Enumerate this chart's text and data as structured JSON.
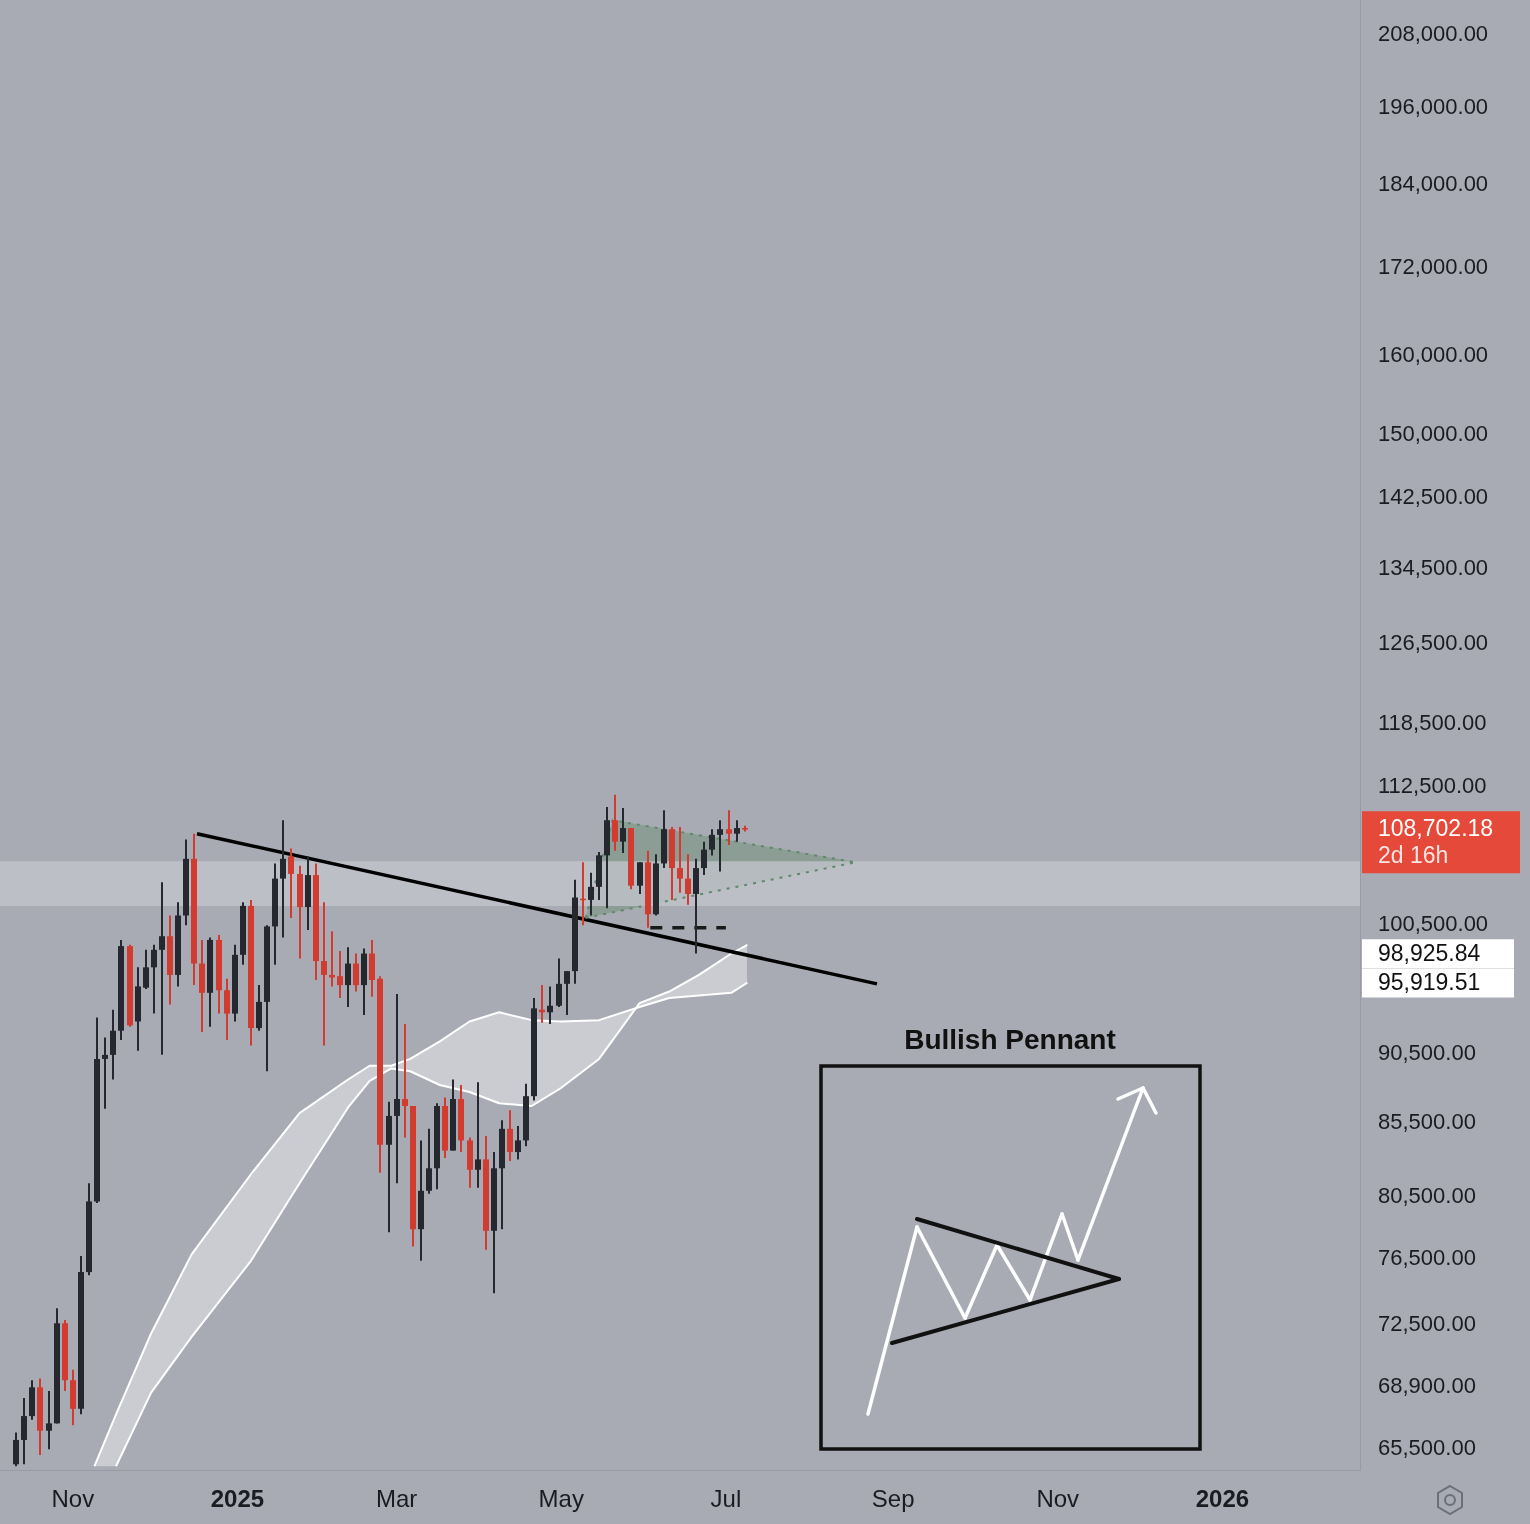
{
  "chart_data": {
    "type": "candlestick",
    "x": [
      "2024-10-11",
      "2024-10-14",
      "2024-10-17",
      "2024-10-20",
      "2024-10-23",
      "2024-10-26",
      "2024-10-29",
      "2024-11-01",
      "2024-11-04",
      "2024-11-07",
      "2024-11-10",
      "2024-11-13",
      "2024-11-16",
      "2024-11-19",
      "2024-11-22",
      "2024-11-25",
      "2024-11-28",
      "2024-12-01",
      "2024-12-04",
      "2024-12-07",
      "2024-12-10",
      "2024-12-13",
      "2024-12-16",
      "2024-12-19",
      "2024-12-22",
      "2024-12-25",
      "2024-12-28",
      "2024-12-31",
      "2025-01-03",
      "2025-01-06",
      "2025-01-09",
      "2025-01-12",
      "2025-01-15",
      "2025-01-18",
      "2025-01-21",
      "2025-01-24",
      "2025-01-27",
      "2025-01-30",
      "2025-02-02",
      "2025-02-05",
      "2025-02-08",
      "2025-02-11",
      "2025-02-14",
      "2025-02-17",
      "2025-02-20",
      "2025-02-23",
      "2025-02-26",
      "2025-03-01",
      "2025-03-04",
      "2025-03-07",
      "2025-03-10",
      "2025-03-13",
      "2025-03-16",
      "2025-03-19",
      "2025-03-22",
      "2025-03-25",
      "2025-03-28",
      "2025-03-31",
      "2025-04-03",
      "2025-04-06",
      "2025-04-09",
      "2025-04-12",
      "2025-04-15",
      "2025-04-18",
      "2025-04-21",
      "2025-04-24",
      "2025-04-27",
      "2025-04-30",
      "2025-05-03",
      "2025-05-06",
      "2025-05-09",
      "2025-05-12",
      "2025-05-15",
      "2025-05-18",
      "2025-05-21",
      "2025-05-24",
      "2025-05-27",
      "2025-05-30",
      "2025-06-02",
      "2025-06-05",
      "2025-06-08",
      "2025-06-11",
      "2025-06-14",
      "2025-06-17",
      "2025-06-20",
      "2025-06-23",
      "2025-06-26",
      "2025-06-29",
      "2025-07-02",
      "2025-07-05",
      "2025-07-08"
    ],
    "ohlc": [
      [
        64700,
        66400,
        64600,
        66000
      ],
      [
        66000,
        68300,
        64700,
        67300
      ],
      [
        67300,
        69300,
        67100,
        68900
      ],
      [
        68900,
        69400,
        65200,
        66500
      ],
      [
        66500,
        68700,
        65500,
        66900
      ],
      [
        66900,
        73500,
        66900,
        72600
      ],
      [
        72600,
        72800,
        68700,
        69300
      ],
      [
        69300,
        69900,
        66800,
        67700
      ],
      [
        67700,
        76700,
        67400,
        75700
      ],
      [
        75700,
        81400,
        75500,
        80200
      ],
      [
        80200,
        93200,
        80100,
        90100
      ],
      [
        90100,
        91700,
        86500,
        90400
      ],
      [
        90400,
        93800,
        88600,
        92200
      ],
      [
        92200,
        99300,
        91500,
        98800
      ],
      [
        98800,
        98900,
        92500,
        92600
      ],
      [
        92900,
        97100,
        90700,
        95600
      ],
      [
        95500,
        98500,
        95400,
        97100
      ],
      [
        97100,
        98900,
        93500,
        98500
      ],
      [
        98500,
        104100,
        90400,
        99600
      ],
      [
        99600,
        101300,
        94200,
        96500
      ],
      [
        96500,
        102400,
        95600,
        101300
      ],
      [
        101300,
        107800,
        100500,
        106100
      ],
      [
        106100,
        108300,
        95700,
        97400
      ],
      [
        97400,
        99300,
        92100,
        95100
      ],
      [
        95100,
        99500,
        92500,
        99300
      ],
      [
        99300,
        99700,
        93500,
        95300
      ],
      [
        95300,
        96200,
        91500,
        93500
      ],
      [
        93500,
        98900,
        92900,
        98100
      ],
      [
        98100,
        102400,
        97300,
        102100
      ],
      [
        102100,
        102600,
        91100,
        92400
      ],
      [
        92400,
        95700,
        92200,
        94400
      ],
      [
        94400,
        100500,
        89200,
        100400
      ],
      [
        100400,
        105700,
        97300,
        104400
      ],
      [
        104400,
        109500,
        99500,
        106100
      ],
      [
        106300,
        107000,
        101100,
        104800
      ],
      [
        104800,
        105500,
        97800,
        102000
      ],
      [
        102000,
        106300,
        100100,
        104700
      ],
      [
        104700,
        105700,
        96100,
        97600
      ],
      [
        97600,
        102400,
        91100,
        96500
      ],
      [
        96500,
        100000,
        95600,
        96300
      ],
      [
        96400,
        98400,
        94700,
        95700
      ],
      [
        95700,
        98700,
        94000,
        97400
      ],
      [
        97400,
        98200,
        95200,
        95700
      ],
      [
        95700,
        98600,
        93400,
        98200
      ],
      [
        98200,
        99300,
        94800,
        96100
      ],
      [
        96200,
        96400,
        82100,
        84000
      ],
      [
        84000,
        87000,
        78200,
        86000
      ],
      [
        86000,
        95000,
        81400,
        87200
      ],
      [
        87200,
        92700,
        84500,
        86700
      ],
      [
        86700,
        86700,
        77300,
        78400
      ],
      [
        78400,
        84300,
        76400,
        80900
      ],
      [
        80900,
        85100,
        80700,
        82400
      ],
      [
        82400,
        86900,
        81000,
        86700
      ],
      [
        86700,
        87300,
        83100,
        83600
      ],
      [
        83600,
        88600,
        83600,
        87200
      ],
      [
        87200,
        88200,
        83500,
        84300
      ],
      [
        84300,
        84500,
        81100,
        82300
      ],
      [
        82300,
        88400,
        81100,
        83000
      ],
      [
        83000,
        84600,
        77100,
        78300
      ],
      [
        78300,
        83500,
        74400,
        82400
      ],
      [
        82400,
        85700,
        78400,
        85100
      ],
      [
        85100,
        86400,
        82900,
        83500
      ],
      [
        83500,
        85300,
        83000,
        84300
      ],
      [
        84300,
        88300,
        83900,
        87400
      ],
      [
        87400,
        94700,
        87100,
        93900
      ],
      [
        93800,
        95700,
        92800,
        93600
      ],
      [
        93600,
        95600,
        92700,
        94100
      ],
      [
        94100,
        97800,
        94000,
        95800
      ],
      [
        95800,
        96800,
        93400,
        96800
      ],
      [
        96800,
        104300,
        95800,
        102800
      ],
      [
        102700,
        105800,
        100500,
        102600
      ],
      [
        102600,
        104900,
        101300,
        103700
      ],
      [
        103700,
        106700,
        102600,
        106400
      ],
      [
        106400,
        110700,
        101900,
        109500
      ],
      [
        109500,
        111800,
        106800,
        107600
      ],
      [
        107600,
        110600,
        106600,
        108800
      ],
      [
        108800,
        108800,
        103500,
        103800
      ],
      [
        103800,
        105800,
        103100,
        105800
      ],
      [
        105800,
        106800,
        100300,
        101400
      ],
      [
        101400,
        106500,
        101300,
        105700
      ],
      [
        105700,
        110400,
        105300,
        108700
      ],
      [
        108700,
        108900,
        102600,
        105300
      ],
      [
        105300,
        108900,
        103200,
        104400
      ],
      [
        104400,
        106500,
        102200,
        103100
      ],
      [
        103100,
        106100,
        98200,
        105300
      ],
      [
        105300,
        107600,
        104700,
        106900
      ],
      [
        106900,
        108700,
        106400,
        108200
      ],
      [
        108200,
        109500,
        105000,
        108700
      ],
      [
        108700,
        110400,
        107300,
        108300
      ],
      [
        108300,
        109500,
        107600,
        108800
      ],
      [
        108800,
        109000,
        108500,
        108700
      ]
    ],
    "colors": [
      "#262830",
      "#262830",
      "#262830",
      "#d23b2f",
      "#262830",
      "#262830",
      "#d23b2f",
      "#d23b2f",
      "#262830",
      "#262830",
      "#262830",
      "#262830",
      "#262830",
      "#262830",
      "#d23b2f",
      "#262830",
      "#262830",
      "#262830",
      "#262830",
      "#d23b2f",
      "#262830",
      "#262830",
      "#d23b2f",
      "#d23b2f",
      "#262830",
      "#d23b2f",
      "#d23b2f",
      "#262830",
      "#262830",
      "#d23b2f",
      "#262830",
      "#262830",
      "#262830",
      "#262830",
      "#d23b2f",
      "#d23b2f",
      "#262830",
      "#d23b2f",
      "#d23b2f",
      "#d23b2f",
      "#d23b2f",
      "#262830",
      "#d23b2f",
      "#262830",
      "#d23b2f",
      "#d23b2f",
      "#262830",
      "#262830",
      "#d23b2f",
      "#d23b2f",
      "#262830",
      "#262830",
      "#262830",
      "#d23b2f",
      "#262830",
      "#d23b2f",
      "#d23b2f",
      "#262830",
      "#d23b2f",
      "#262830",
      "#262830",
      "#d23b2f",
      "#262830",
      "#262830",
      "#262830",
      "#d23b2f",
      "#262830",
      "#262830",
      "#262830",
      "#262830",
      "#d23b2f",
      "#262830",
      "#262830",
      "#262830",
      "#d23b2f",
      "#262830",
      "#d23b2f",
      "#262830",
      "#d23b2f",
      "#262830",
      "#262830",
      "#d23b2f",
      "#d23b2f",
      "#d23b2f",
      "#262830",
      "#262830",
      "#262830",
      "#262830",
      "#d23b2f",
      "#262830",
      "#d23b2f"
    ],
    "xlim": [
      "2024-10-05",
      "2026-02-21"
    ],
    "xticks": [
      {
        "value": "2024-11-01",
        "label": "Nov"
      },
      {
        "value": "2025-01-01",
        "label": "2025"
      },
      {
        "value": "2025-03-01",
        "label": "Mar"
      },
      {
        "value": "2025-05-01",
        "label": "May"
      },
      {
        "value": "2025-07-01",
        "label": "Jul"
      },
      {
        "value": "2025-09-01",
        "label": "Sep"
      },
      {
        "value": "2025-11-01",
        "label": "Nov"
      },
      {
        "value": "2026-01-01",
        "label": "2026"
      }
    ],
    "ylim": [
      64400,
      214000
    ],
    "log": "y",
    "yticks": [
      {
        "value": 65500,
        "label": "65,500.00"
      },
      {
        "value": 68900,
        "label": "68,900.00"
      },
      {
        "value": 72500,
        "label": "72,500.00"
      },
      {
        "value": 76500,
        "label": "76,500.00"
      },
      {
        "value": 80500,
        "label": "80,500.00"
      },
      {
        "value": 85500,
        "label": "85,500.00"
      },
      {
        "value": 90500,
        "label": "90,500.00"
      },
      {
        "value": 100500,
        "label": "100,500.00"
      },
      {
        "value": 112500,
        "label": "112,500.00"
      },
      {
        "value": 118500,
        "label": "118,500.00"
      },
      {
        "value": 126500,
        "label": "126,500.00"
      },
      {
        "value": 134500,
        "label": "134,500.00"
      },
      {
        "value": 142500,
        "label": "142,500.00"
      },
      {
        "value": 150000,
        "label": "150,000.00"
      },
      {
        "value": 160000,
        "label": "160,000.00"
      },
      {
        "value": 172000,
        "label": "172,000.00"
      },
      {
        "value": 184000,
        "label": "184,000.00"
      },
      {
        "value": 196000,
        "label": "196,000.00"
      },
      {
        "value": 208000,
        "label": "208,000.00"
      }
    ],
    "series": [
      {
        "type": "line",
        "color": "#ffffff",
        "line_style": "solid",
        "x": [
          "2024-11-09",
          "2024-11-17",
          "2024-11-30",
          "2024-12-15",
          "2025-01-06",
          "2025-01-24",
          "2025-02-11",
          "2025-02-19",
          "2025-02-27",
          "2025-03-06",
          "2025-03-17",
          "2025-03-28",
          "2025-04-08",
          "2025-04-20",
          "2025-05-01",
          "2025-05-15",
          "2025-05-30",
          "2025-06-10",
          "2025-06-21",
          "2025-07-03",
          "2025-07-09"
        ],
        "values": [
          64600,
          67400,
          72000,
          76800,
          82000,
          86200,
          88600,
          89600,
          89600,
          90100,
          91400,
          92900,
          93600,
          93000,
          92900,
          93000,
          94000,
          94700,
          94900,
          95100,
          95900
        ]
      },
      {
        "type": "line",
        "color": "#ffffff",
        "line_style": "solid",
        "x": [
          "2024-11-17",
          "2024-11-30",
          "2024-12-15",
          "2025-01-06",
          "2025-01-24",
          "2025-02-11",
          "2025-02-19",
          "2025-02-27",
          "2025-03-06",
          "2025-03-17",
          "2025-03-28",
          "2025-04-08",
          "2025-04-20",
          "2025-05-01",
          "2025-05-15",
          "2025-05-30",
          "2025-06-10",
          "2025-06-21",
          "2025-07-03",
          "2025-07-09"
        ],
        "values": [
          64600,
          68600,
          71800,
          76400,
          81400,
          86600,
          88500,
          89400,
          89200,
          88200,
          87700,
          86900,
          86700,
          88000,
          90100,
          94300,
          95200,
          96500,
          98200,
          98900
        ]
      },
      {
        "type": "line",
        "color": "#000000",
        "line_style": "solid",
        "x": [
          "2024-12-17",
          "2025-08-26"
        ],
        "values": [
          108300,
          95800
        ]
      },
      {
        "type": "line",
        "color": "#5e8a68",
        "line_style": "dotted",
        "x": [
          "2025-05-10",
          "2025-05-20",
          "2025-08-18"
        ],
        "values": [
          101100,
          109500,
          105800
        ]
      },
      {
        "type": "line",
        "color": "#5e8a68",
        "line_style": "dotted",
        "x": [
          "2025-05-10",
          "2025-08-18"
        ],
        "values": [
          101100,
          105800
        ]
      },
      {
        "type": "line",
        "color": "#1a1a1a",
        "line_style": "dashed",
        "x": [
          "2025-06-03",
          "2025-07-01"
        ],
        "values": [
          100300,
          100300
        ]
      }
    ],
    "bands": [
      {
        "axis": "y",
        "from": 102100,
        "to": 105900,
        "color": "#c3c6cc"
      }
    ],
    "annotations": [
      "108,702.18",
      "2d 16h",
      "98,925.84",
      "95,919.51",
      "Bullish Pennant"
    ],
    "marker": "none",
    "grid": false,
    "legend": false
  }
}
